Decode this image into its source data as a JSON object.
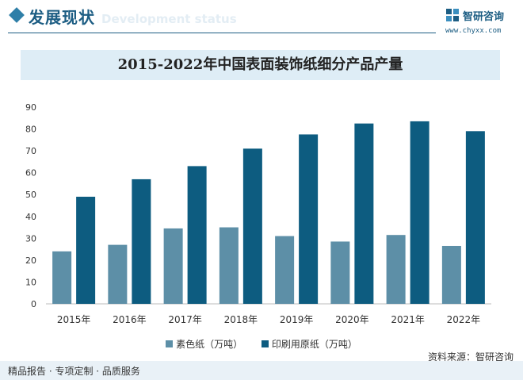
{
  "header": {
    "section_title": "发展现状",
    "section_subtitle": "Development status",
    "logo_text": "智研咨询",
    "logo_url": "www.chyxx.com"
  },
  "chart_data": {
    "type": "bar",
    "title": "2015-2022年中国表面装饰纸细分产品产量",
    "categories": [
      "2015年",
      "2016年",
      "2017年",
      "2018年",
      "2019年",
      "2020年",
      "2021年",
      "2022年"
    ],
    "series": [
      {
        "name": "素色纸（万吨）",
        "color": "#5d8fa7",
        "values": [
          24,
          27,
          34.5,
          35,
          31,
          28.5,
          31.5,
          26.5
        ]
      },
      {
        "name": "印刷用原纸（万吨）",
        "color": "#0d5c80",
        "values": [
          49,
          57,
          63,
          71,
          77.5,
          82.5,
          83.5,
          79
        ]
      }
    ],
    "ylim": [
      0,
      90
    ],
    "yticks": [
      0,
      10,
      20,
      30,
      40,
      50,
      60,
      70,
      80,
      90
    ],
    "grid": false,
    "legend_position": "bottom"
  },
  "source_text": "资料来源：智研咨询",
  "footer_text": "精品报告 · 专项定制 · 品质服务"
}
